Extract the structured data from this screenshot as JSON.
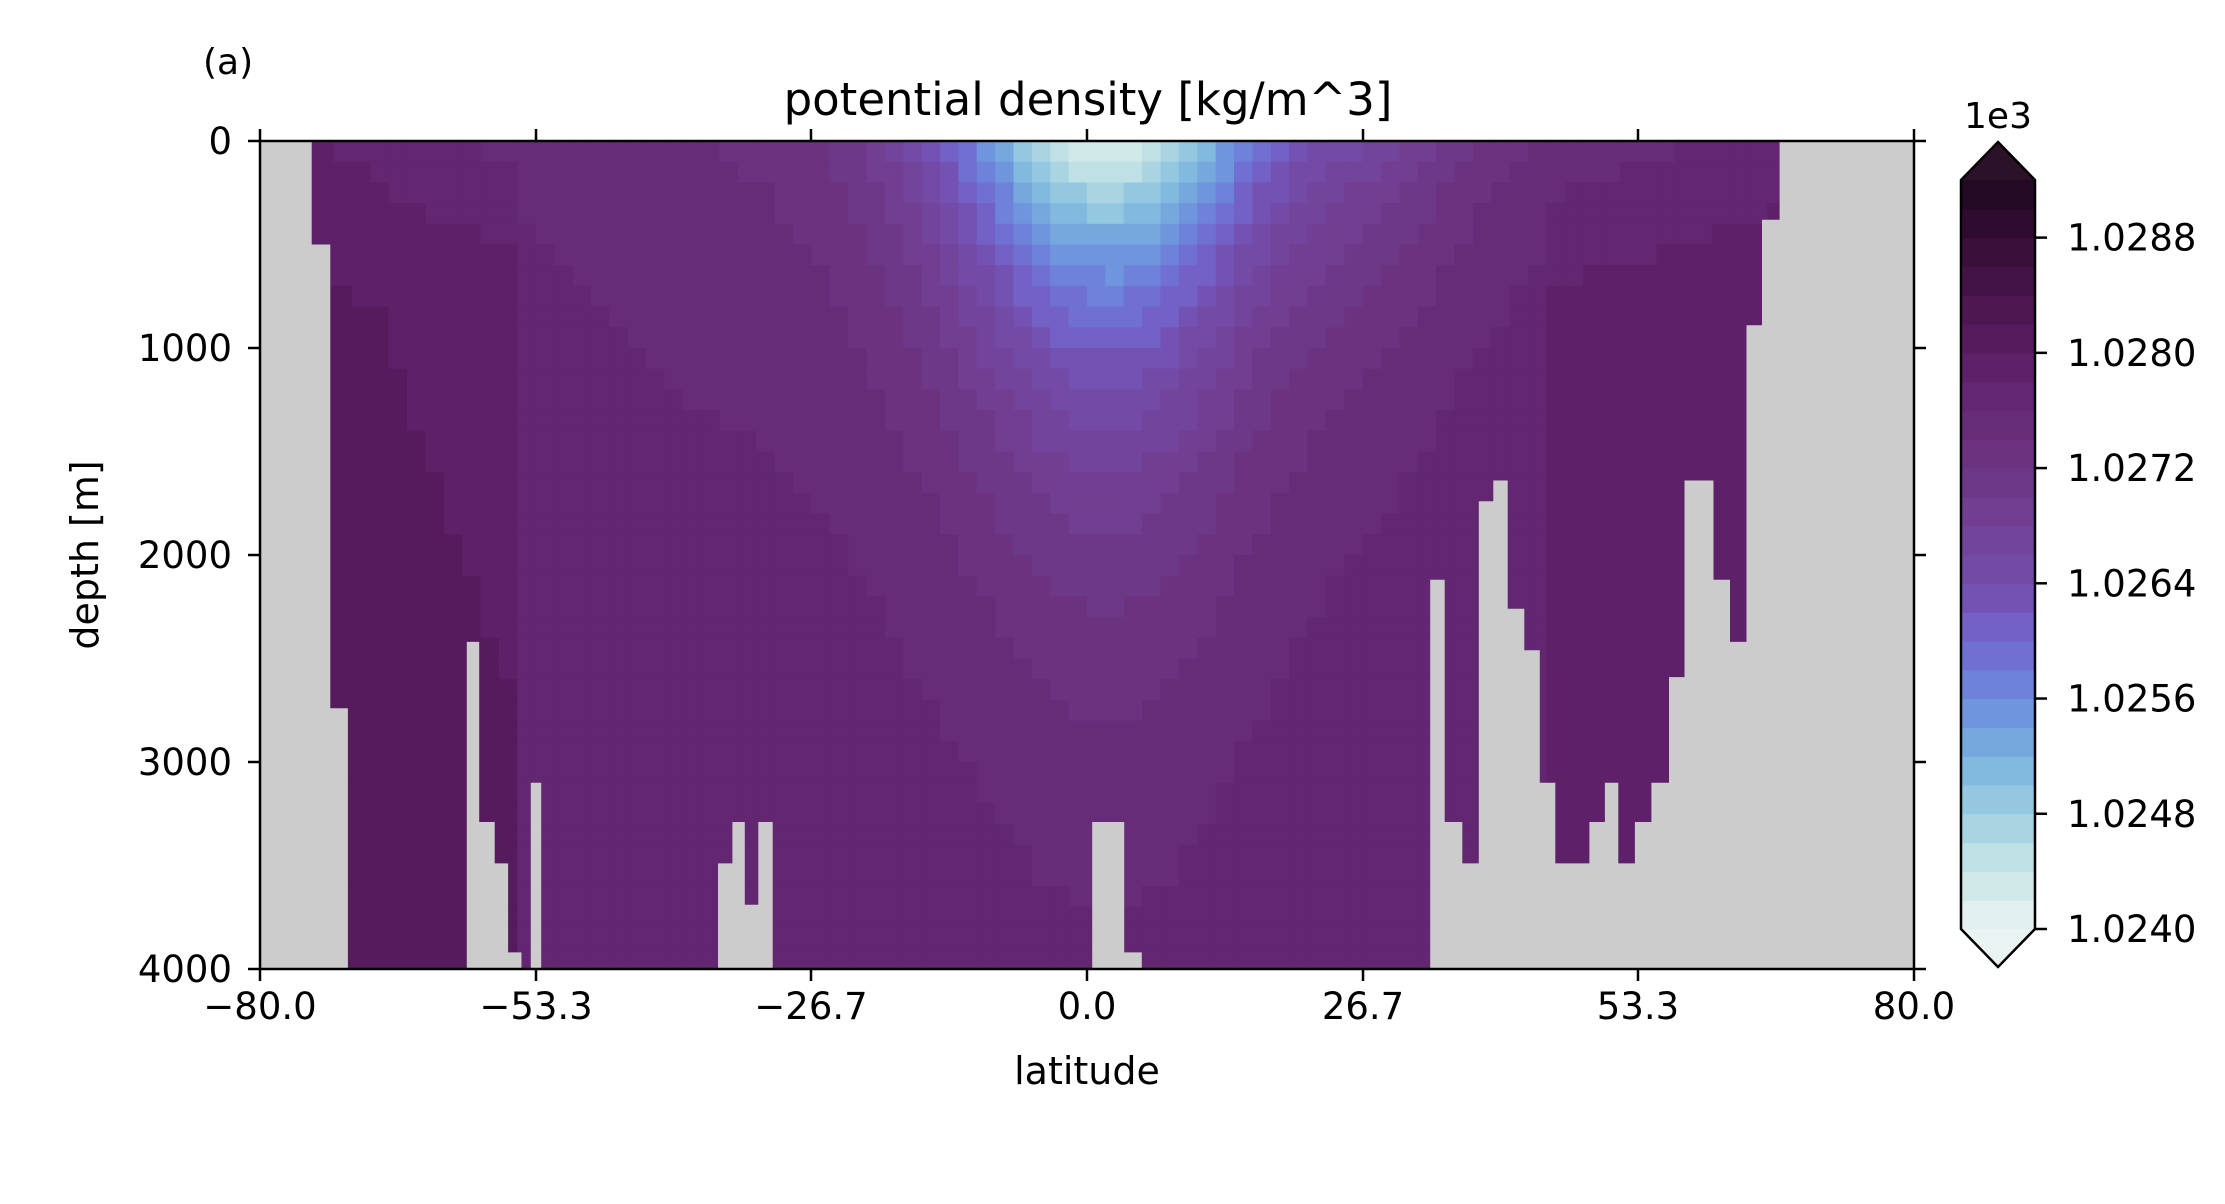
{
  "panel_label": "(a)",
  "chart_data": {
    "type": "heatmap",
    "title": "potential density [kg/m^3]",
    "xlabel": "latitude",
    "ylabel": "depth [m]",
    "xlim": [
      -80.0,
      80.0
    ],
    "ylim": [
      4000,
      0
    ],
    "y_inverted": true,
    "x_ticks": [
      -80.0,
      -53.3,
      -26.7,
      0.0,
      26.7,
      53.3,
      80.0
    ],
    "x_tick_labels": [
      "−80.0",
      "−53.3",
      "−26.7",
      "0.0",
      "26.7",
      "53.3",
      "80.0"
    ],
    "y_ticks": [
      0,
      1000,
      2000,
      3000,
      4000
    ],
    "y_tick_labels": [
      "0",
      "1000",
      "2000",
      "3000",
      "4000"
    ],
    "land_color": "#cccccc",
    "colorbar": {
      "offset_label": "1e3",
      "vmin": 1.024,
      "vmax": 1.0292,
      "extend": "both",
      "ticks": [
        1.024,
        1.0248,
        1.0256,
        1.0264,
        1.0272,
        1.028,
        1.0288
      ],
      "tick_labels": [
        "1.0240",
        "1.0248",
        "1.0256",
        "1.0264",
        "1.0272",
        "1.0280",
        "1.0288"
      ],
      "levels": 26,
      "colors": [
        "#e1efee",
        "#d0e8e8",
        "#bfe0e4",
        "#a9d4e2",
        "#93c8e0",
        "#81b9df",
        "#76a8de",
        "#6f95dc",
        "#6e82d9",
        "#7070d3",
        "#7361c6",
        "#7352b3",
        "#734aa6",
        "#73449c",
        "#713e92",
        "#6e3888",
        "#6b327f",
        "#672c77",
        "#632670",
        "#5e2068",
        "#561b5d",
        "#4d1751",
        "#441345",
        "#3a103a",
        "#2f0c2f",
        "#240924"
      ],
      "under_color": "#e8f3f2",
      "over_color": "#2c1228"
    },
    "field": {
      "description": "density (kg/m^3 / 1000) as function of latitude and depth; land masked",
      "surface_equator": 1.024,
      "deep_value": 1.0277
    }
  }
}
